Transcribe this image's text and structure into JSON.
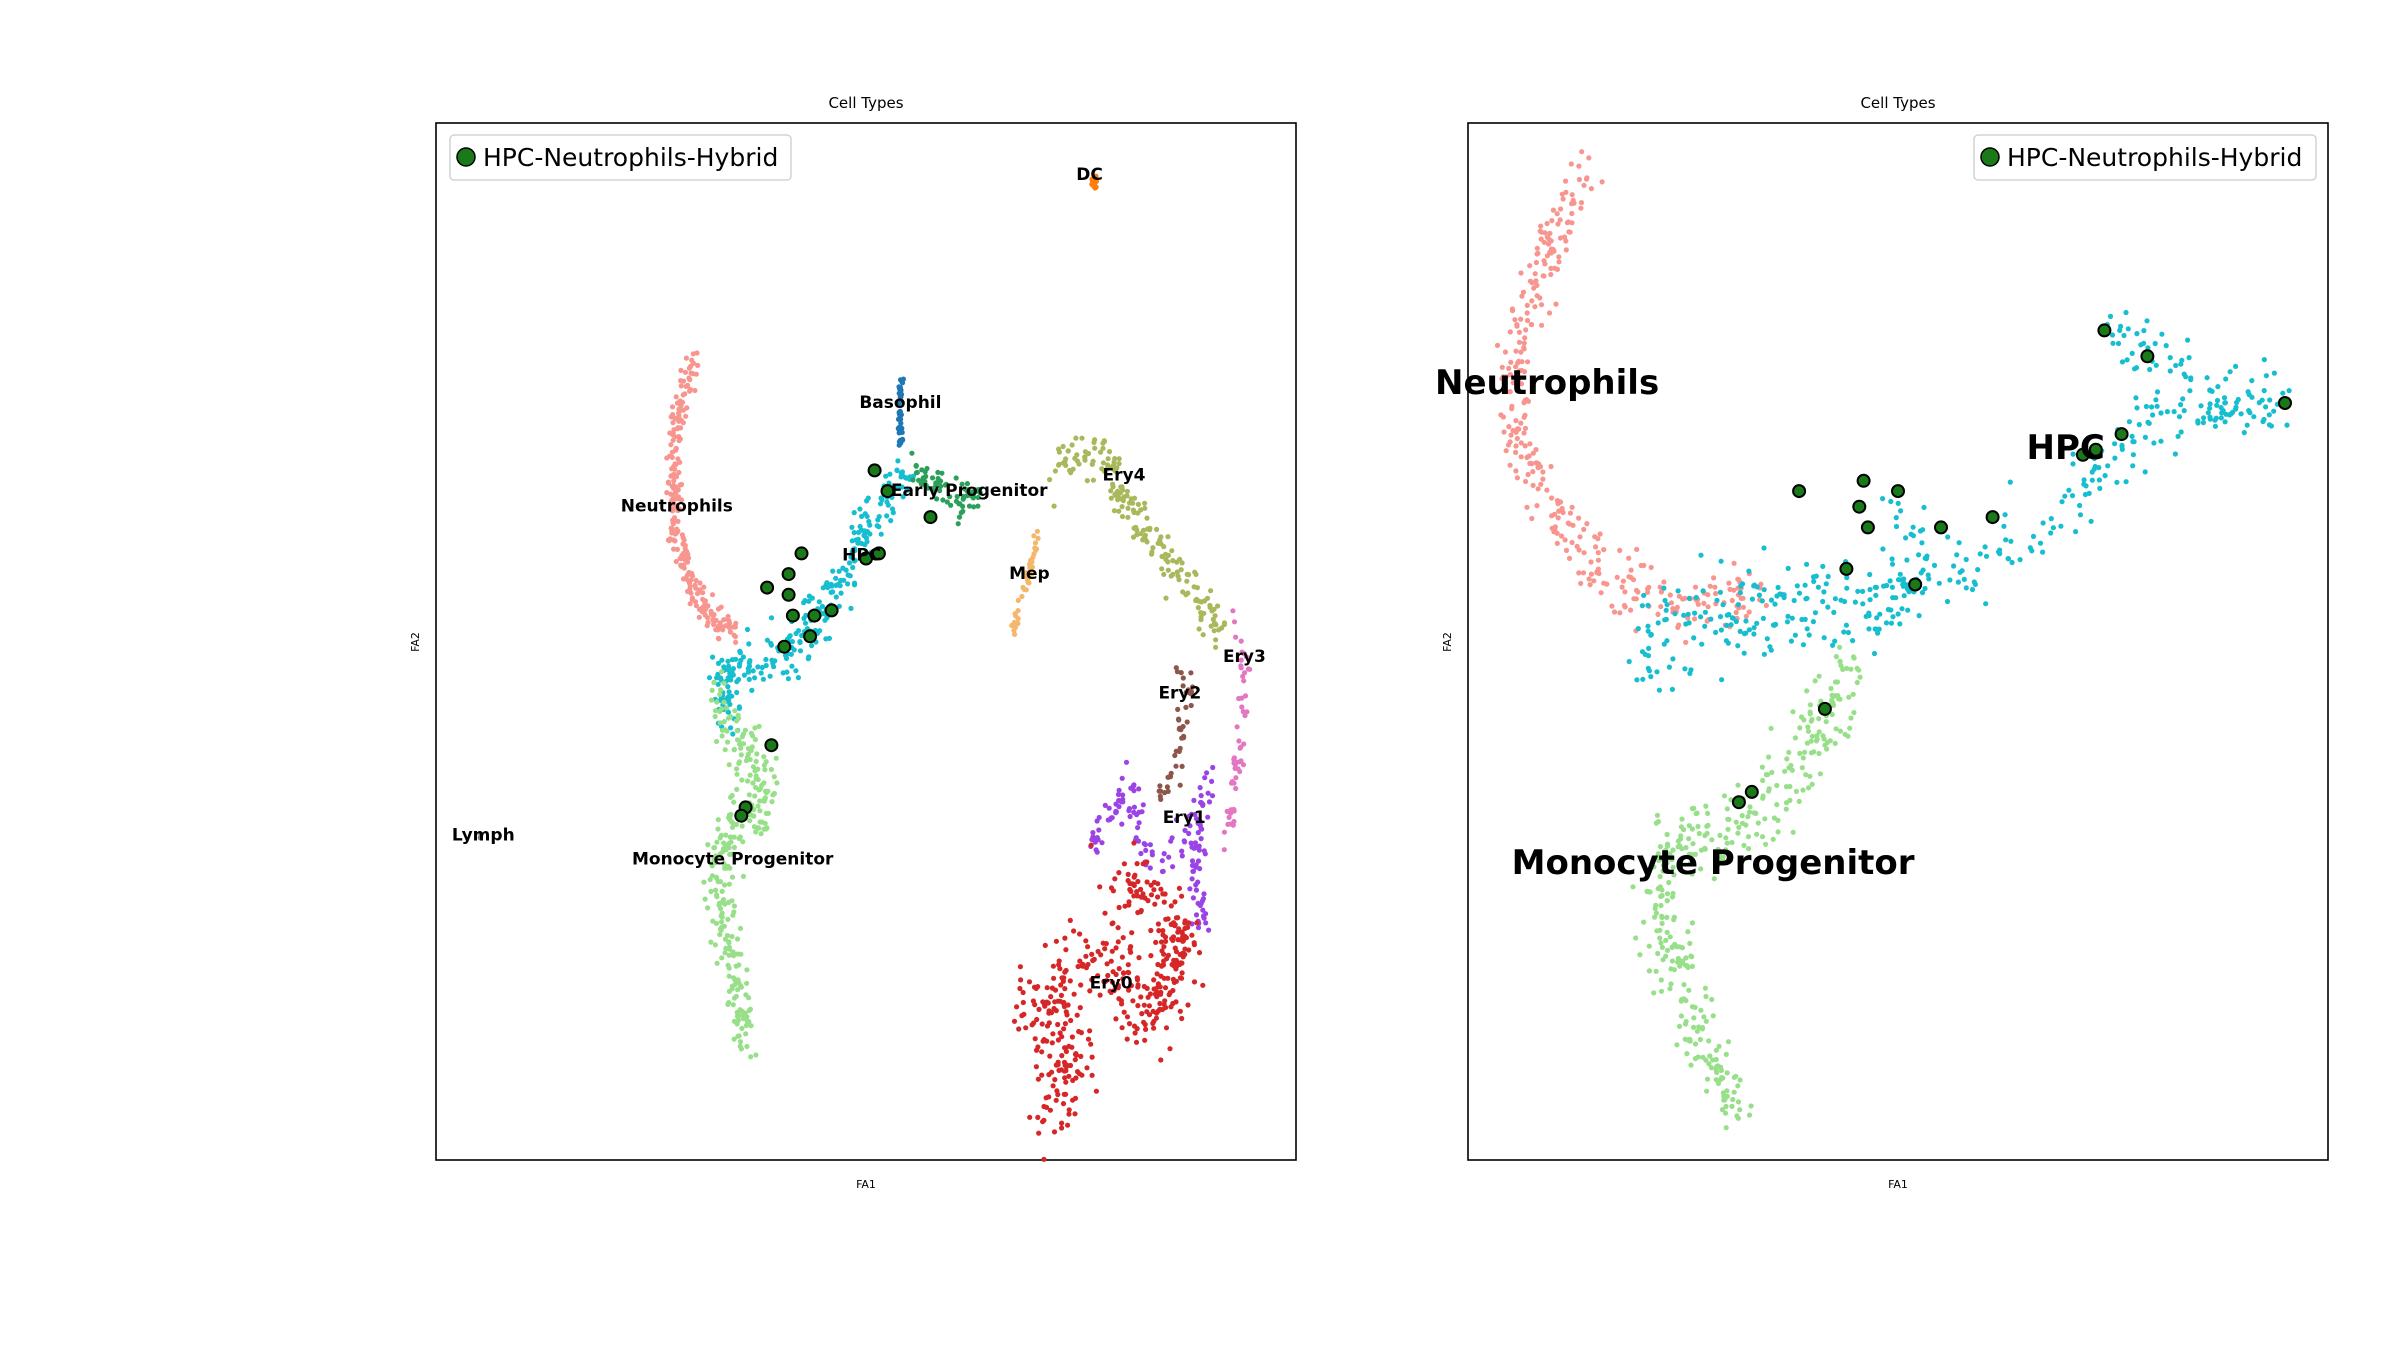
{
  "figure": {
    "panels": [
      {
        "title": "Cell Types",
        "xlabel": "FA1",
        "ylabel": "FA2",
        "legend": {
          "label": "HPC-Neutrophils-Hybrid",
          "position": "upper-left",
          "color": "#1a7a1a"
        },
        "label_size": "small",
        "xlim": [
          0,
          100
        ],
        "ylim": [
          0,
          100
        ],
        "clusters": [
          {
            "name": "DC",
            "color": "#ff7f0e",
            "shape": "blob",
            "path": [
              [
                76.5,
                94.8
              ],
              [
                76.6,
                94
              ]
            ],
            "spread": 0.3,
            "n": 20,
            "label_at": [
              76,
              95
            ]
          },
          {
            "name": "Basophil",
            "color": "#1f77b4",
            "shape": "path",
            "path": [
              [
                54,
                75.5
              ],
              [
                54,
                69
              ]
            ],
            "spread": 0.3,
            "n": 45,
            "label_at": [
              54,
              73
            ]
          },
          {
            "name": "Neutrophils",
            "color": "#f7958e",
            "shape": "path",
            "path": [
              [
                30,
                77
              ],
              [
                28.2,
                73
              ],
              [
                27.6,
                66
              ],
              [
                28,
                60
              ],
              [
                29.4,
                56
              ],
              [
                31.5,
                52.5
              ],
              [
                35,
                51
              ]
            ],
            "spread": 0.7,
            "n": 240,
            "label_at": [
              28,
              63
            ]
          },
          {
            "name": "HPC",
            "color": "#17becf",
            "shape": "path",
            "path": [
              [
                55,
                66
              ],
              [
                52.5,
                64
              ],
              [
                50.5,
                62
              ],
              [
                49,
                59
              ],
              [
                47,
                56
              ],
              [
                44,
                52
              ],
              [
                41,
                49
              ],
              [
                37,
                48
              ],
              [
                33,
                47
              ],
              [
                34,
                43
              ]
            ],
            "spread": 1.3,
            "n": 270,
            "label_at": [
              49.5,
              58.3
            ]
          },
          {
            "name": "Early Progenitor",
            "color": "#2ca05a",
            "shape": "path",
            "path": [
              [
                55,
                66.5
              ],
              [
                58,
                65
              ],
              [
                61,
                63.5
              ],
              [
                63,
                64
              ]
            ],
            "spread": 0.8,
            "n": 70,
            "label_at": [
              62,
              64.5
            ]
          },
          {
            "name": "Mep",
            "color": "#f5b76c",
            "shape": "path",
            "path": [
              [
                70,
                60.5
              ],
              [
                68.5,
                55
              ],
              [
                67,
                51
              ]
            ],
            "spread": 0.3,
            "n": 40,
            "label_at": [
              69,
              56.5
            ]
          },
          {
            "name": "Ery4",
            "color": "#a9b85a",
            "shape": "path",
            "path": [
              [
                72,
                67
              ],
              [
                75,
                68.5
              ],
              [
                78,
                67
              ],
              [
                80,
                63
              ],
              [
                84,
                59
              ],
              [
                88,
                55
              ],
              [
                91.5,
                51
              ]
            ],
            "spread": 1.1,
            "n": 180,
            "label_at": [
              80,
              66
            ]
          },
          {
            "name": "Ery3",
            "color": "#e377c2",
            "shape": "path",
            "path": [
              [
                93,
                52
              ],
              [
                94,
                49
              ],
              [
                94,
                45
              ],
              [
                93.5,
                40
              ],
              [
                92.5,
                35
              ],
              [
                92,
                31
              ]
            ],
            "spread": 0.6,
            "n": 55,
            "label_at": [
              94,
              48.5
            ]
          },
          {
            "name": "Ery2",
            "color": "#8c564b",
            "shape": "path",
            "path": [
              [
                86,
                48
              ],
              [
                87.5,
                45
              ],
              [
                86.8,
                42
              ],
              [
                86.5,
                38
              ],
              [
                84,
                35
              ]
            ],
            "spread": 0.7,
            "n": 45,
            "label_at": [
              86.5,
              45
            ]
          },
          {
            "name": "Ery1",
            "color": "#9b44e6",
            "shape": "path",
            "path": [
              [
                76,
                30
              ],
              [
                79,
                34
              ],
              [
                80.5,
                36
              ],
              [
                81.5,
                31
              ],
              [
                84,
                28
              ],
              [
                88,
                33
              ],
              [
                89.5,
                36
              ],
              [
                89,
                31
              ],
              [
                88,
                27
              ],
              [
                89,
                24
              ],
              [
                88.5,
                22
              ]
            ],
            "spread": 1.0,
            "n": 150,
            "label_at": [
              87,
              33
            ]
          },
          {
            "name": "Ery0",
            "color": "#d62728",
            "shape": "blob",
            "path": [
              [
                79,
                27
              ],
              [
                85,
                24
              ],
              [
                87,
                21
              ],
              [
                83,
                14
              ],
              [
                78,
                20
              ],
              [
                72,
                17
              ],
              [
                69,
                14
              ],
              [
                75,
                10
              ],
              [
                72,
                7
              ],
              [
                70.5,
                5
              ]
            ],
            "spread": 2.2,
            "n": 430,
            "label_at": [
              78.5,
              17
            ]
          },
          {
            "name": "Monocyte Progenitor",
            "color": "#98df8a",
            "shape": "path",
            "path": [
              [
                33,
                44
              ],
              [
                35,
                40
              ],
              [
                38,
                37
              ],
              [
                38.5,
                34
              ],
              [
                35,
                33
              ],
              [
                33,
                30
              ],
              [
                33,
                26
              ],
              [
                33.5,
                22
              ],
              [
                34.5,
                18
              ],
              [
                35.5,
                14
              ],
              [
                36,
                12
              ]
            ],
            "spread": 1.4,
            "n": 300,
            "label_at": [
              34.5,
              29
            ]
          },
          {
            "name": "Lymph",
            "color": "#7f7f7f",
            "shape": "blob",
            "path": [
              [
                5.2,
                31.3
              ]
            ],
            "spread": 0.15,
            "n": 3,
            "label_at": [
              5.5,
              31.3
            ]
          }
        ],
        "hybrid_points": [
          [
            51,
            66.5
          ],
          [
            52.5,
            64.5
          ],
          [
            57.5,
            62
          ],
          [
            51.5,
            58.5
          ],
          [
            50,
            58
          ],
          [
            42.5,
            58.5
          ],
          [
            41,
            56.5
          ],
          [
            38.5,
            55.2
          ],
          [
            41,
            54.5
          ],
          [
            41.5,
            52.5
          ],
          [
            44,
            52.5
          ],
          [
            46,
            53
          ],
          [
            43.5,
            50.5
          ],
          [
            40.5,
            49.5
          ],
          [
            39,
            40
          ],
          [
            36,
            34
          ],
          [
            35.5,
            33.2
          ]
        ]
      },
      {
        "title": "Cell Types",
        "xlabel": "FA1",
        "ylabel": "FA2",
        "legend": {
          "label": "HPC-Neutrophils-Hybrid",
          "position": "upper-right",
          "color": "#1a7a1a"
        },
        "label_size": "large",
        "xlim": [
          0,
          100
        ],
        "ylim": [
          0,
          100
        ],
        "clusters": [
          {
            "name": "Neutrophils",
            "color": "#f7958e",
            "shape": "path",
            "path": [
              [
                14.5,
                95.5
              ],
              [
                11,
                91
              ],
              [
                8,
                85
              ],
              [
                5.5,
                78
              ],
              [
                5,
                72
              ],
              [
                6.5,
                68
              ],
              [
                9,
                64
              ],
              [
                12,
                60
              ],
              [
                16,
                57
              ],
              [
                20,
                55
              ],
              [
                25,
                53.5
              ],
              [
                30,
                53.5
              ],
              [
                34,
                55
              ]
            ],
            "spread": 1.6,
            "n": 340,
            "label_at": [
              9.2,
              74.8
            ]
          },
          {
            "name": "HPC",
            "color": "#17becf",
            "shape": "path",
            "path": [
              [
                74,
                81
              ],
              [
                77,
                79
              ],
              [
                82,
                75
              ],
              [
                86.5,
                73
              ],
              [
                95,
                73.5
              ],
              [
                79,
                71
              ],
              [
                75,
                68
              ],
              [
                70,
                63
              ],
              [
                64,
                59
              ],
              [
                55,
                56
              ],
              [
                47,
                55
              ],
              [
                40,
                55
              ],
              [
                33,
                55
              ],
              [
                25,
                54
              ],
              [
                22,
                53
              ],
              [
                20,
                51
              ],
              [
                21,
                48
              ],
              [
                26,
                49
              ],
              [
                32,
                50
              ],
              [
                37,
                51
              ],
              [
                42,
                52
              ],
              [
                48,
                53
              ],
              [
                53,
                56
              ],
              [
                50,
                63
              ]
            ],
            "spread": 1.7,
            "n": 460,
            "label_at": [
              69.5,
              68.5
            ]
          },
          {
            "name": "Monocyte Progenitor",
            "color": "#98df8a",
            "shape": "path",
            "path": [
              [
                45,
                47
              ],
              [
                42,
                43
              ],
              [
                38,
                38
              ],
              [
                34,
                33
              ],
              [
                30,
                31
              ],
              [
                24,
                32
              ],
              [
                22,
                27
              ],
              [
                23,
                21
              ],
              [
                25,
                16
              ],
              [
                27,
                12
              ],
              [
                29,
                8
              ],
              [
                32,
                5
              ]
            ],
            "spread": 2.0,
            "n": 380,
            "label_at": [
              28.5,
              28.5
            ]
          }
        ],
        "hybrid_points": [
          [
            74,
            80
          ],
          [
            79,
            77.5
          ],
          [
            95,
            73
          ],
          [
            76,
            70
          ],
          [
            73,
            68.5
          ],
          [
            71.5,
            68
          ],
          [
            61,
            62
          ],
          [
            55,
            61
          ],
          [
            50,
            64.5
          ],
          [
            46,
            65.5
          ],
          [
            45.5,
            63
          ],
          [
            46.5,
            61
          ],
          [
            38.5,
            64.5
          ],
          [
            52,
            55.5
          ],
          [
            44,
            57
          ],
          [
            41.5,
            43.5
          ],
          [
            33,
            35.5
          ],
          [
            31.5,
            34.5
          ]
        ]
      }
    ]
  }
}
